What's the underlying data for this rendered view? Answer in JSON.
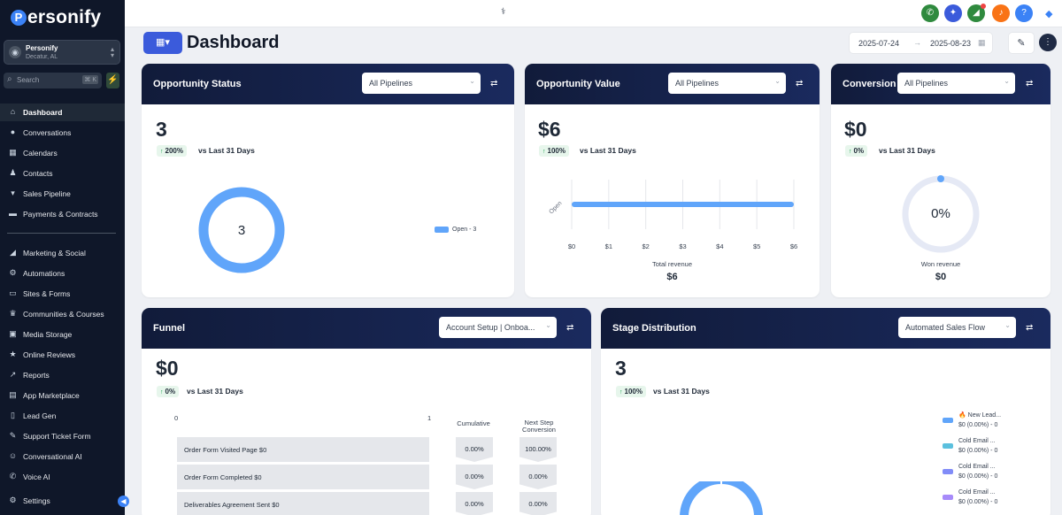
{
  "brand": {
    "logo_text": "ersonify",
    "logo_initial": "P"
  },
  "account": {
    "name": "Personify",
    "location": "Decatur, AL"
  },
  "search": {
    "placeholder": "Search",
    "shortcut": "⌘ K"
  },
  "nav": [
    {
      "label": "Dashboard",
      "icon": "home-icon",
      "glyph": "⌂",
      "active": true
    },
    {
      "label": "Conversations",
      "icon": "chat-icon",
      "glyph": "●"
    },
    {
      "label": "Calendars",
      "icon": "calendar-icon",
      "glyph": "▦"
    },
    {
      "label": "Contacts",
      "icon": "contacts-icon",
      "glyph": "♟"
    },
    {
      "label": "Sales Pipeline",
      "icon": "pipeline-icon",
      "glyph": "▾"
    },
    {
      "label": "Payments & Contracts",
      "icon": "payments-icon",
      "glyph": "▬"
    },
    {
      "label": "Marketing & Social",
      "icon": "megaphone-icon",
      "glyph": "◢"
    },
    {
      "label": "Automations",
      "icon": "automations-icon",
      "glyph": "⚙"
    },
    {
      "label": "Sites & Forms",
      "icon": "monitor-icon",
      "glyph": "▭"
    },
    {
      "label": "Communities & Courses",
      "icon": "trophy-icon",
      "glyph": "♛"
    },
    {
      "label": "Media Storage",
      "icon": "image-icon",
      "glyph": "▣"
    },
    {
      "label": "Online Reviews",
      "icon": "star-icon",
      "glyph": "★"
    },
    {
      "label": "Reports",
      "icon": "chart-icon",
      "glyph": "↗"
    },
    {
      "label": "App Marketplace",
      "icon": "store-icon",
      "glyph": "▤"
    },
    {
      "label": "Lead Gen",
      "icon": "lead-gen-icon",
      "glyph": "▯"
    },
    {
      "label": "Support Ticket Form",
      "icon": "wrench-icon",
      "glyph": "✎"
    },
    {
      "label": "Conversational AI",
      "icon": "bot-icon",
      "glyph": "☺"
    },
    {
      "label": "Voice AI",
      "icon": "phone-icon",
      "glyph": "✆"
    },
    {
      "label": "Settings",
      "icon": "gear-icon",
      "glyph": "⚙"
    }
  ],
  "topbar": {
    "buttons": [
      {
        "icon": "phone-icon",
        "glyph": "✆",
        "color": "#2f8a3e"
      },
      {
        "icon": "magic-icon",
        "glyph": "✦",
        "color": "#3b5bdb"
      },
      {
        "icon": "megaphone-icon",
        "glyph": "◢",
        "color": "#2f8a3e"
      },
      {
        "icon": "bell-icon",
        "glyph": "♪",
        "color": "#f97316"
      },
      {
        "icon": "help-icon",
        "glyph": "?",
        "color": "#3b82f6"
      }
    ]
  },
  "header": {
    "title": "Dashboard",
    "date_start": "2025-07-24",
    "date_end": "2025-08-23"
  },
  "opportunity_status": {
    "title": "Opportunity Status",
    "pipeline": "All Pipelines",
    "value": "3",
    "change": "200%",
    "compare": "vs Last 31 Days",
    "donut_center": "3",
    "legend": "Open - 3"
  },
  "opportunity_value": {
    "title": "Opportunity Value",
    "pipeline": "All Pipelines",
    "value": "$6",
    "change": "100%",
    "compare": "vs Last 31 Days",
    "total_label": "Total revenue",
    "total_value": "$6"
  },
  "conversion": {
    "title": "Conversion",
    "pipeline": "All Pipelines",
    "value": "$0",
    "change": "0%",
    "compare": "vs Last 31 Days",
    "donut_center": "0%",
    "won_label": "Won revenue",
    "won_value": "$0"
  },
  "funnel": {
    "title": "Funnel",
    "pipeline": "Account Setup | Onboa...",
    "value": "$0",
    "change": "0%",
    "compare": "vs Last 31 Days",
    "axis_min": "0",
    "axis_max": "1",
    "col_cumulative": "Cumulative",
    "col_next": "Next Step Conversion",
    "rows": [
      {
        "label": "Order Form   Visited Page   $0",
        "cumulative": "0.00%",
        "next": "100.00%"
      },
      {
        "label": "Order Form   Completed   $0",
        "cumulative": "0.00%",
        "next": "0.00%"
      },
      {
        "label": "Deliverables Agreement   Sent   $0",
        "cumulative": "0.00%",
        "next": "0.00%"
      }
    ]
  },
  "stage_distribution": {
    "title": "Stage Distribution",
    "pipeline": "Automated Sales Flow",
    "value": "3",
    "change": "100%",
    "compare": "vs Last 31 Days",
    "legend": [
      {
        "name": "🔥 New Lead...",
        "value": "$0 (0.00%) - 0",
        "color": "#60a5fa"
      },
      {
        "name": "Cold Email ...",
        "value": "$0 (0.00%) - 0",
        "color": "#5bc0de"
      },
      {
        "name": "Cold Email ...",
        "value": "$0 (0.00%) - 0",
        "color": "#818cf8"
      },
      {
        "name": "Cold Email ...",
        "value": "$0 (0.00%) - 0",
        "color": "#a78bfa"
      }
    ]
  },
  "chart_data": [
    {
      "type": "pie",
      "title": "Opportunity Status",
      "categories": [
        "Open"
      ],
      "values": [
        3
      ]
    },
    {
      "type": "bar",
      "title": "Opportunity Value",
      "categories": [
        "Open"
      ],
      "values": [
        6
      ],
      "xlabel": "Total revenue",
      "xlim": [
        0,
        6
      ],
      "x_ticks": [
        "$0",
        "$1",
        "$2",
        "$3",
        "$4",
        "$5",
        "$6"
      ]
    },
    {
      "type": "pie",
      "title": "Conversion",
      "categories": [
        "Won"
      ],
      "values": [
        0
      ]
    }
  ],
  "colors": {
    "accent": "#3b5bdb",
    "chart_blue": "#60a5fa",
    "sidebar": "#0f1729",
    "header": "#111b3a"
  }
}
